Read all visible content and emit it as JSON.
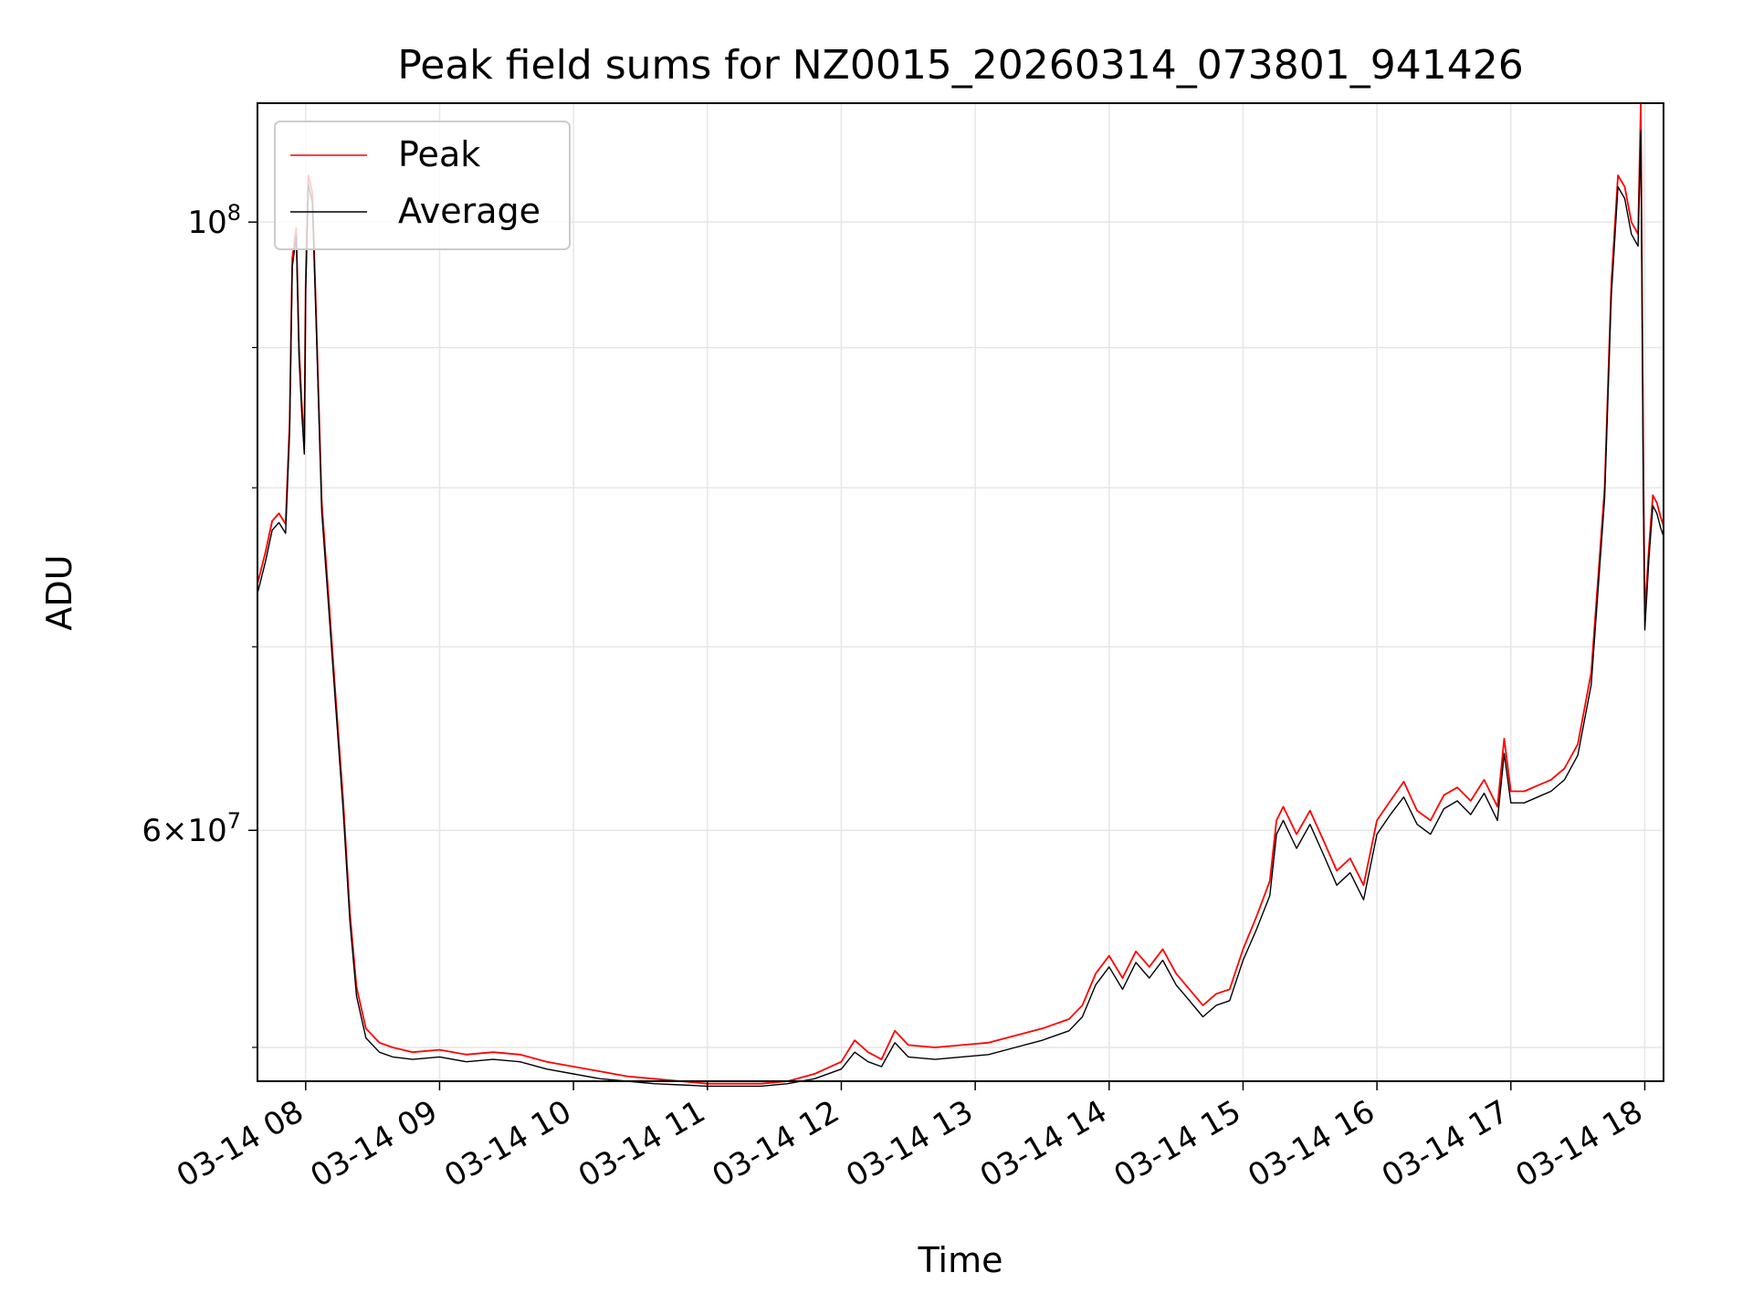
{
  "chart_data": {
    "type": "line",
    "title": "Peak field sums for NZ0015_20260314_073801_941426",
    "xlabel": "Time",
    "ylabel": "ADU",
    "yscale": "log",
    "xlim_hours": [
      7.64,
      18.14
    ],
    "ylim": [
      48600000,
      110500000
    ],
    "grid": true,
    "legend_position": "upper-left",
    "x_ticks": [
      {
        "hour": 8,
        "label": "03-14 08"
      },
      {
        "hour": 9,
        "label": "03-14 09"
      },
      {
        "hour": 10,
        "label": "03-14 10"
      },
      {
        "hour": 11,
        "label": "03-14 11"
      },
      {
        "hour": 12,
        "label": "03-14 12"
      },
      {
        "hour": 13,
        "label": "03-14 13"
      },
      {
        "hour": 14,
        "label": "03-14 14"
      },
      {
        "hour": 15,
        "label": "03-14 15"
      },
      {
        "hour": 16,
        "label": "03-14 16"
      },
      {
        "hour": 17,
        "label": "03-14 17"
      },
      {
        "hour": 18,
        "label": "03-14 18"
      }
    ],
    "y_major_ticks": [
      {
        "value": 60000000,
        "base": "6",
        "sup": "7"
      },
      {
        "value": 100000000,
        "base": "10",
        "sup": "8"
      }
    ],
    "y_minor_ticks": [
      50000000,
      70000000,
      80000000,
      90000000
    ],
    "series": [
      {
        "name": "Peak",
        "color": "#ff0000",
        "points": [
          [
            7.64,
            73.8
          ],
          [
            7.7,
            75.8
          ],
          [
            7.75,
            77.8
          ],
          [
            7.8,
            78.3
          ],
          [
            7.85,
            77.6
          ],
          [
            7.88,
            84.5
          ],
          [
            7.9,
            97.0
          ],
          [
            7.93,
            99.5
          ],
          [
            7.95,
            90.0
          ],
          [
            7.97,
            86.0
          ],
          [
            7.99,
            83.0
          ],
          [
            8.0,
            95.0
          ],
          [
            8.02,
            104.0
          ],
          [
            8.05,
            102.5
          ],
          [
            8.08,
            92.0
          ],
          [
            8.12,
            79.0
          ],
          [
            8.18,
            72.0
          ],
          [
            8.22,
            67.5
          ],
          [
            8.28,
            61.5
          ],
          [
            8.33,
            56.0
          ],
          [
            8.38,
            52.6
          ],
          [
            8.45,
            50.8
          ],
          [
            8.55,
            50.2
          ],
          [
            8.65,
            50.0
          ],
          [
            8.8,
            49.8
          ],
          [
            9.0,
            49.9
          ],
          [
            9.2,
            49.7
          ],
          [
            9.4,
            49.8
          ],
          [
            9.6,
            49.7
          ],
          [
            9.8,
            49.4
          ],
          [
            10.0,
            49.2
          ],
          [
            10.2,
            49.0
          ],
          [
            10.4,
            48.8
          ],
          [
            10.6,
            48.7
          ],
          [
            10.8,
            48.6
          ],
          [
            11.0,
            48.5
          ],
          [
            11.2,
            48.5
          ],
          [
            11.4,
            48.5
          ],
          [
            11.6,
            48.6
          ],
          [
            11.8,
            48.9
          ],
          [
            12.0,
            49.4
          ],
          [
            12.1,
            50.3
          ],
          [
            12.2,
            49.8
          ],
          [
            12.3,
            49.5
          ],
          [
            12.4,
            50.7
          ],
          [
            12.5,
            50.1
          ],
          [
            12.7,
            50.0
          ],
          [
            12.9,
            50.1
          ],
          [
            13.1,
            50.2
          ],
          [
            13.3,
            50.5
          ],
          [
            13.5,
            50.8
          ],
          [
            13.7,
            51.2
          ],
          [
            13.8,
            51.8
          ],
          [
            13.9,
            53.2
          ],
          [
            14.0,
            54.0
          ],
          [
            14.1,
            53.0
          ],
          [
            14.2,
            54.2
          ],
          [
            14.3,
            53.5
          ],
          [
            14.4,
            54.3
          ],
          [
            14.5,
            53.2
          ],
          [
            14.6,
            52.5
          ],
          [
            14.7,
            51.8
          ],
          [
            14.8,
            52.3
          ],
          [
            14.9,
            52.5
          ],
          [
            15.0,
            54.3
          ],
          [
            15.1,
            55.8
          ],
          [
            15.2,
            57.5
          ],
          [
            15.25,
            60.5
          ],
          [
            15.3,
            61.2
          ],
          [
            15.4,
            59.8
          ],
          [
            15.5,
            61.0
          ],
          [
            15.6,
            59.5
          ],
          [
            15.7,
            58.0
          ],
          [
            15.8,
            58.6
          ],
          [
            15.9,
            57.3
          ],
          [
            16.0,
            60.5
          ],
          [
            16.1,
            61.5
          ],
          [
            16.2,
            62.5
          ],
          [
            16.3,
            61.0
          ],
          [
            16.4,
            60.5
          ],
          [
            16.5,
            61.8
          ],
          [
            16.6,
            62.2
          ],
          [
            16.7,
            61.5
          ],
          [
            16.8,
            62.6
          ],
          [
            16.9,
            61.2
          ],
          [
            16.95,
            64.8
          ],
          [
            17.0,
            62.0
          ],
          [
            17.1,
            62.0
          ],
          [
            17.2,
            62.3
          ],
          [
            17.3,
            62.6
          ],
          [
            17.4,
            63.2
          ],
          [
            17.5,
            64.5
          ],
          [
            17.6,
            68.5
          ],
          [
            17.7,
            80.0
          ],
          [
            17.75,
            95.0
          ],
          [
            17.8,
            104.0
          ],
          [
            17.85,
            103.0
          ],
          [
            17.9,
            100.0
          ],
          [
            17.95,
            99.0
          ],
          [
            17.97,
            110.5
          ],
          [
            17.99,
            80.0
          ],
          [
            18.0,
            72.0
          ],
          [
            18.03,
            76.0
          ],
          [
            18.06,
            79.5
          ],
          [
            18.09,
            79.0
          ],
          [
            18.12,
            78.0
          ],
          [
            18.14,
            77.5
          ]
        ]
      },
      {
        "name": "Average",
        "color": "#000000",
        "points": [
          [
            7.64,
            73.2
          ],
          [
            7.7,
            75.2
          ],
          [
            7.75,
            77.2
          ],
          [
            7.8,
            77.7
          ],
          [
            7.85,
            77.0
          ],
          [
            7.88,
            83.8
          ],
          [
            7.9,
            96.3
          ],
          [
            7.93,
            98.8
          ],
          [
            7.95,
            89.3
          ],
          [
            7.97,
            85.3
          ],
          [
            7.99,
            82.3
          ],
          [
            8.0,
            94.3
          ],
          [
            8.02,
            103.2
          ],
          [
            8.05,
            101.7
          ],
          [
            8.08,
            91.3
          ],
          [
            8.12,
            78.4
          ],
          [
            8.18,
            71.4
          ],
          [
            8.22,
            67.0
          ],
          [
            8.28,
            61.0
          ],
          [
            8.33,
            55.6
          ],
          [
            8.38,
            52.2
          ],
          [
            8.45,
            50.4
          ],
          [
            8.55,
            49.8
          ],
          [
            8.65,
            49.6
          ],
          [
            8.8,
            49.5
          ],
          [
            9.0,
            49.6
          ],
          [
            9.2,
            49.4
          ],
          [
            9.4,
            49.5
          ],
          [
            9.6,
            49.4
          ],
          [
            9.8,
            49.1
          ],
          [
            10.0,
            48.9
          ],
          [
            10.2,
            48.7
          ],
          [
            10.4,
            48.6
          ],
          [
            10.6,
            48.5
          ],
          [
            10.8,
            48.45
          ],
          [
            11.0,
            48.4
          ],
          [
            11.2,
            48.4
          ],
          [
            11.4,
            48.4
          ],
          [
            11.6,
            48.5
          ],
          [
            11.8,
            48.7
          ],
          [
            12.0,
            49.1
          ],
          [
            12.1,
            49.8
          ],
          [
            12.2,
            49.4
          ],
          [
            12.3,
            49.2
          ],
          [
            12.4,
            50.2
          ],
          [
            12.5,
            49.6
          ],
          [
            12.7,
            49.5
          ],
          [
            12.9,
            49.6
          ],
          [
            13.1,
            49.7
          ],
          [
            13.3,
            50.0
          ],
          [
            13.5,
            50.3
          ],
          [
            13.7,
            50.7
          ],
          [
            13.8,
            51.3
          ],
          [
            13.9,
            52.7
          ],
          [
            14.0,
            53.5
          ],
          [
            14.1,
            52.5
          ],
          [
            14.2,
            53.7
          ],
          [
            14.3,
            53.0
          ],
          [
            14.4,
            53.8
          ],
          [
            14.5,
            52.7
          ],
          [
            14.6,
            52.0
          ],
          [
            14.7,
            51.3
          ],
          [
            14.8,
            51.8
          ],
          [
            14.9,
            52.0
          ],
          [
            15.0,
            53.8
          ],
          [
            15.1,
            55.2
          ],
          [
            15.2,
            56.8
          ],
          [
            15.25,
            59.8
          ],
          [
            15.3,
            60.5
          ],
          [
            15.4,
            59.1
          ],
          [
            15.5,
            60.3
          ],
          [
            15.6,
            58.8
          ],
          [
            15.7,
            57.3
          ],
          [
            15.8,
            57.9
          ],
          [
            15.9,
            56.6
          ],
          [
            16.0,
            59.8
          ],
          [
            16.1,
            60.8
          ],
          [
            16.2,
            61.7
          ],
          [
            16.3,
            60.3
          ],
          [
            16.4,
            59.8
          ],
          [
            16.5,
            61.1
          ],
          [
            16.6,
            61.5
          ],
          [
            16.7,
            60.8
          ],
          [
            16.8,
            61.9
          ],
          [
            16.9,
            60.5
          ],
          [
            16.95,
            64.0
          ],
          [
            17.0,
            61.4
          ],
          [
            17.1,
            61.4
          ],
          [
            17.2,
            61.7
          ],
          [
            17.3,
            62.0
          ],
          [
            17.4,
            62.6
          ],
          [
            17.5,
            63.9
          ],
          [
            17.6,
            67.8
          ],
          [
            17.7,
            79.3
          ],
          [
            17.75,
            94.0
          ],
          [
            17.8,
            103.0
          ],
          [
            17.85,
            102.0
          ],
          [
            17.9,
            99.0
          ],
          [
            17.95,
            98.0
          ],
          [
            17.97,
            108.0
          ],
          [
            17.99,
            79.0
          ],
          [
            18.0,
            71.0
          ],
          [
            18.03,
            75.3
          ],
          [
            18.06,
            78.8
          ],
          [
            18.09,
            78.3
          ],
          [
            18.12,
            77.3
          ],
          [
            18.14,
            76.8
          ]
        ]
      }
    ],
    "series_value_unit": "million ADU"
  }
}
